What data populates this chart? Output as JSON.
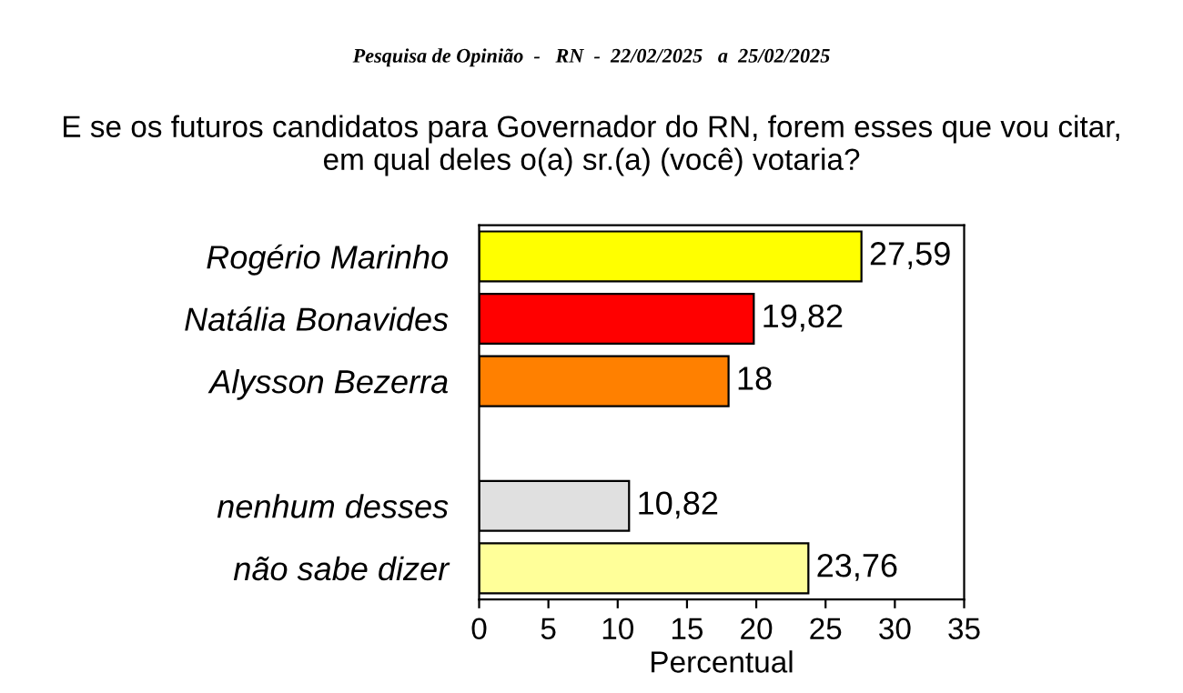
{
  "chart_data": {
    "type": "bar",
    "orientation": "horizontal",
    "title": "Pesquisa de Opinião  -   RN  -  22/02/2025   a  25/02/2025",
    "subtitle": "E se os futuros candidatos para Governador do RN, forem esses que vou citar,\nem qual deles o(a) sr.(a) (você) votaria?",
    "xlabel": "Percentual",
    "categories": [
      "Rogério Marinho",
      "Natália Bonavides",
      "Alysson Bezerra",
      null,
      "nenhum desses",
      "não sabe dizer"
    ],
    "values": [
      27.59,
      19.82,
      18,
      null,
      10.82,
      23.76
    ],
    "colors": [
      "#ffff00",
      "#ff0000",
      "#ff8000",
      "#ffffff",
      "#e0e0e0",
      "#ffff99"
    ],
    "value_labels": [
      "27,59",
      "19,82",
      "18",
      null,
      "10,82",
      "23,76"
    ],
    "xlim": [
      0,
      35
    ],
    "xticks": [
      0,
      5,
      10,
      15,
      20,
      25,
      30,
      35
    ],
    "grid": false,
    "legend": false
  }
}
